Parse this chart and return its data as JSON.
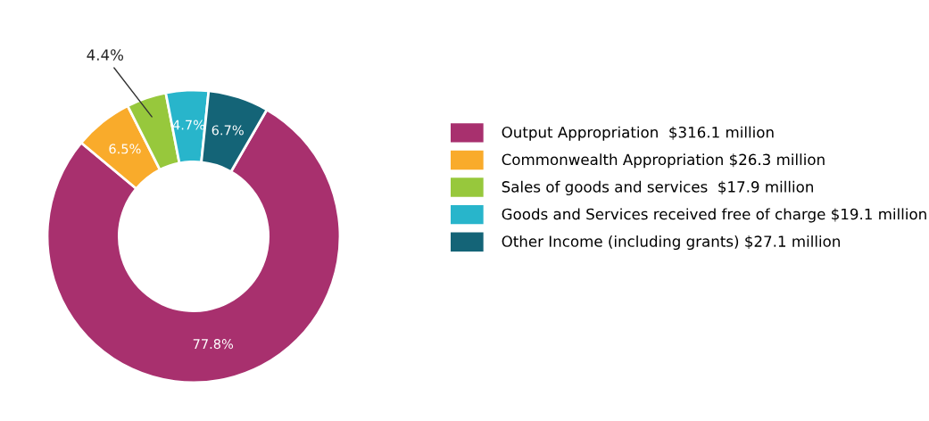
{
  "chart_data": {
    "type": "donut",
    "categories": [
      "Output Appropriation  $316.1 million",
      "Commonwealth Appropriation $26.3 million",
      "Sales of goods and services  $17.9 million",
      "Goods and Services received free of charge $19.1 million",
      "Other Income (including grants) $27.1 million"
    ],
    "values": [
      77.8,
      6.5,
      4.4,
      4.7,
      6.7
    ],
    "value_labels": [
      "77.8%",
      "6.5%",
      "4.4%",
      "4.7%",
      "6.7%"
    ],
    "colors": [
      "#a8306e",
      "#f9ab2b",
      "#97c83c",
      "#28b5cb",
      "#146477"
    ],
    "legend": "right"
  }
}
